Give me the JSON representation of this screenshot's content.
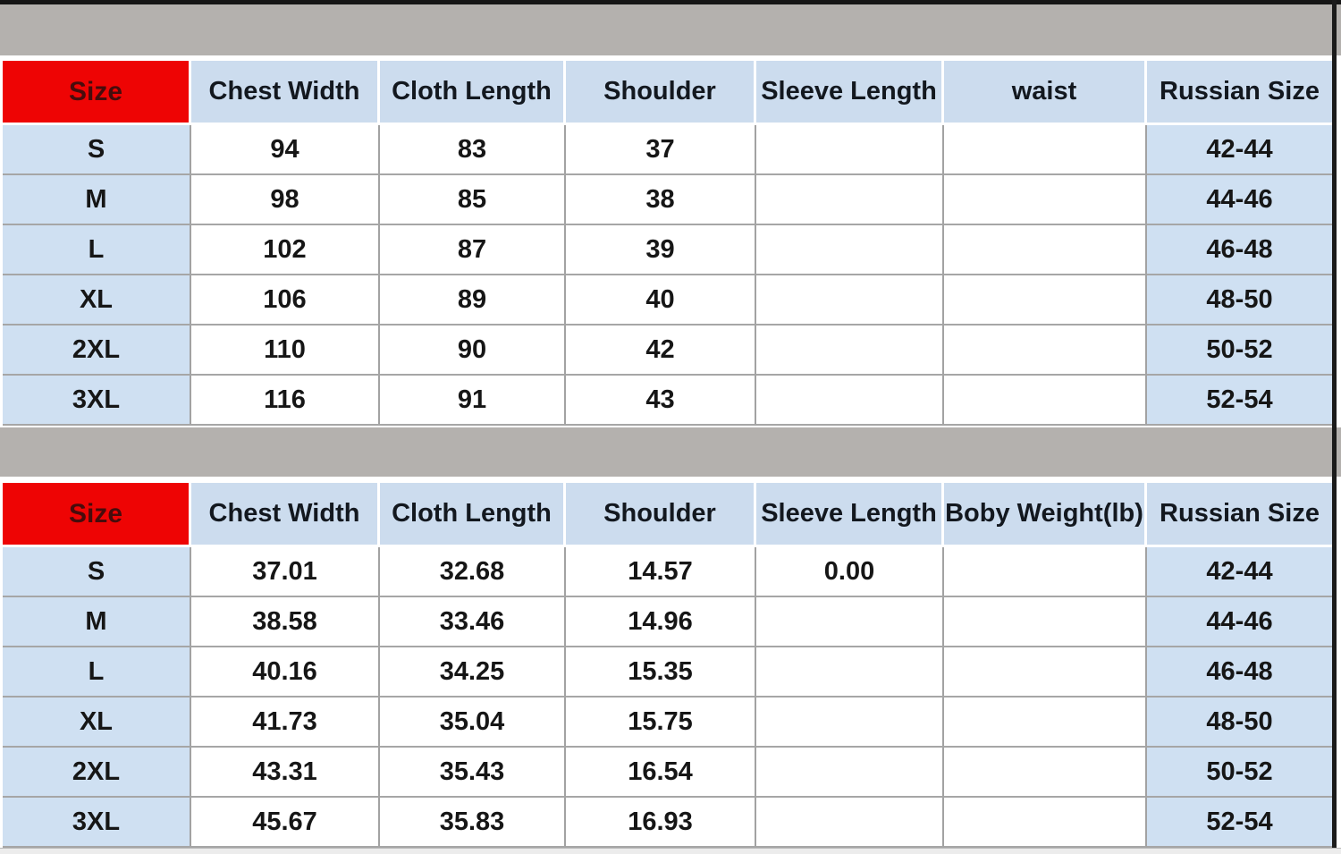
{
  "colors": {
    "accent_red": "#ee0404",
    "size_label_dark_red": "#470c0c",
    "header_blue": "#ccdcee",
    "row_blue": "#cfe0f2",
    "bar_gray": "#b4b1ae",
    "text": "#161616"
  },
  "chart_data": [
    {
      "type": "table",
      "title": "",
      "columns": [
        "Size",
        "Chest Width",
        "Cloth Length",
        "Shoulder",
        "Sleeve Length",
        "waist",
        "Russian Size"
      ],
      "rows": [
        [
          "S",
          "94",
          "83",
          "37",
          "",
          "",
          "42-44"
        ],
        [
          "M",
          "98",
          "85",
          "38",
          "",
          "",
          "44-46"
        ],
        [
          "L",
          "102",
          "87",
          "39",
          "",
          "",
          "46-48"
        ],
        [
          "XL",
          "106",
          "89",
          "40",
          "",
          "",
          "48-50"
        ],
        [
          "2XL",
          "110",
          "90",
          "42",
          "",
          "",
          "50-52"
        ],
        [
          "3XL",
          "116",
          "91",
          "43",
          "",
          "",
          "52-54"
        ]
      ]
    },
    {
      "type": "table",
      "title": "",
      "columns": [
        "Size",
        "Chest Width",
        "Cloth Length",
        "Shoulder",
        "Sleeve Length",
        "Boby Weight(lb)",
        "Russian Size"
      ],
      "rows": [
        [
          "S",
          "37.01",
          "32.68",
          "14.57",
          "0.00",
          "",
          "42-44"
        ],
        [
          "M",
          "38.58",
          "33.46",
          "14.96",
          "",
          "",
          "44-46"
        ],
        [
          "L",
          "40.16",
          "34.25",
          "15.35",
          "",
          "",
          "46-48"
        ],
        [
          "XL",
          "41.73",
          "35.04",
          "15.75",
          "",
          "",
          "48-50"
        ],
        [
          "2XL",
          "43.31",
          "35.43",
          "16.54",
          "",
          "",
          "50-52"
        ],
        [
          "3XL",
          "45.67",
          "35.83",
          "16.93",
          "",
          "",
          "52-54"
        ]
      ]
    }
  ]
}
